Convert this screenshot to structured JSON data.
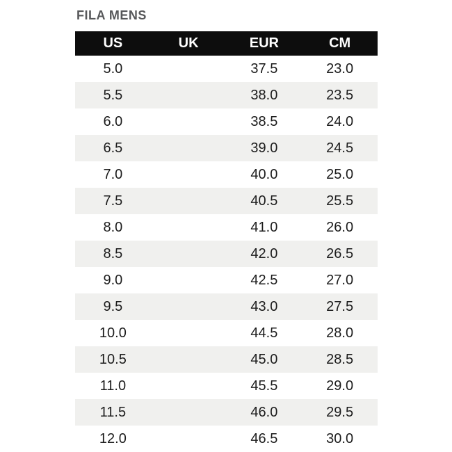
{
  "page": {
    "background": "#ffffff"
  },
  "colors": {
    "title_text": "#57585a",
    "header_bg": "#0d0d0d",
    "header_text": "#ffffff",
    "row_alt_bg": "#f0f0ee",
    "row_text": "#1c1c1c"
  },
  "chart_data": {
    "type": "table",
    "title": "FILA MENS",
    "columns": [
      "US",
      "UK",
      "EUR",
      "CM"
    ],
    "rows": [
      [
        "5.0",
        "",
        "37.5",
        "23.0"
      ],
      [
        "5.5",
        "",
        "38.0",
        "23.5"
      ],
      [
        "6.0",
        "",
        "38.5",
        "24.0"
      ],
      [
        "6.5",
        "",
        "39.0",
        "24.5"
      ],
      [
        "7.0",
        "",
        "40.0",
        "25.0"
      ],
      [
        "7.5",
        "",
        "40.5",
        "25.5"
      ],
      [
        "8.0",
        "",
        "41.0",
        "26.0"
      ],
      [
        "8.5",
        "",
        "42.0",
        "26.5"
      ],
      [
        "9.0",
        "",
        "42.5",
        "27.0"
      ],
      [
        "9.5",
        "",
        "43.0",
        "27.5"
      ],
      [
        "10.0",
        "",
        "44.5",
        "28.0"
      ],
      [
        "10.5",
        "",
        "45.0",
        "28.5"
      ],
      [
        "11.0",
        "",
        "45.5",
        "29.0"
      ],
      [
        "11.5",
        "",
        "46.0",
        "29.5"
      ],
      [
        "12.0",
        "",
        "46.5",
        "30.0"
      ]
    ],
    "layout": {
      "row_striping": "alternating white / light gray starting gray on second row",
      "uk_column_empty": true,
      "last_row_clipped_at_bottom": true
    }
  }
}
